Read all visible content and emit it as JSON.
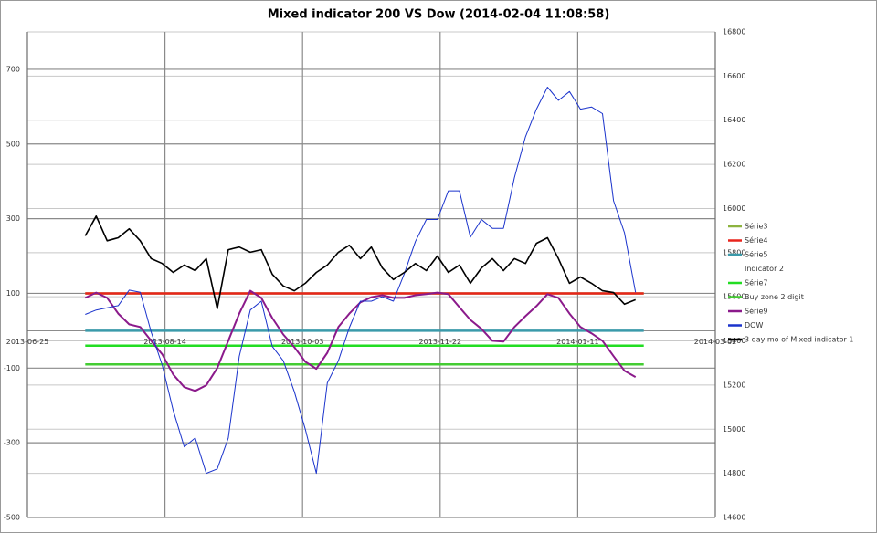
{
  "chart_data": {
    "type": "line",
    "title": "Mixed indicator 200 VS Dow (2014-02-04 11:08:58)",
    "xlim": [
      "2013-06-25",
      "2014-03-02"
    ],
    "xticks": [
      "2013-06-25",
      "2013-08-14",
      "2013-10-03",
      "2013-11-22",
      "2014-01-11",
      "2014-03-02"
    ],
    "ylim": [
      -500,
      800
    ],
    "yticks": [
      -500,
      -300,
      -100,
      100,
      300,
      500,
      700
    ],
    "y2lim": [
      14600,
      16800
    ],
    "y2ticks": [
      14600,
      14800,
      15000,
      15200,
      15400,
      15600,
      15800,
      16000,
      16200,
      16400,
      16600,
      16800
    ],
    "grid": true,
    "legend": "right",
    "series": [
      {
        "name": "Série3",
        "color": "#8db33f",
        "x": [
          "2013-07-16",
          "2014-02-04"
        ],
        "values": [
          100,
          100
        ]
      },
      {
        "name": "Série4",
        "color": "#e8241c",
        "x": [
          "2013-07-16",
          "2014-02-04"
        ],
        "values": [
          100,
          100
        ]
      },
      {
        "name": "Série5",
        "color": "#3a9aaa",
        "x": [
          "2013-07-16",
          "2014-02-04"
        ],
        "values": [
          0,
          0
        ]
      },
      {
        "name": "Indicator 2",
        "color": "#ffffff",
        "x": [],
        "values": []
      },
      {
        "name": "Série7",
        "color": "#22dd22",
        "x": [
          "2013-07-16",
          "2014-02-04"
        ],
        "values": [
          -40,
          -40
        ]
      },
      {
        "name": "Buy zone 2 digit",
        "color": "#44cc33",
        "x": [
          "2013-07-16",
          "2014-02-04"
        ],
        "values": [
          -90,
          -90
        ]
      },
      {
        "name": "Série9",
        "color": "#8b1a8b",
        "x": [
          "2013-07-16",
          "2013-07-20",
          "2013-07-24",
          "2013-07-28",
          "2013-08-01",
          "2013-08-05",
          "2013-08-09",
          "2013-08-13",
          "2013-08-17",
          "2013-08-21",
          "2013-08-25",
          "2013-08-29",
          "2013-09-02",
          "2013-09-06",
          "2013-09-10",
          "2013-09-14",
          "2013-09-18",
          "2013-09-22",
          "2013-09-26",
          "2013-09-30",
          "2013-10-04",
          "2013-10-08",
          "2013-10-12",
          "2013-10-16",
          "2013-10-20",
          "2013-10-24",
          "2013-10-28",
          "2013-11-01",
          "2013-11-05",
          "2013-11-09",
          "2013-11-13",
          "2013-11-17",
          "2013-11-21",
          "2013-11-25",
          "2013-11-29",
          "2013-12-03",
          "2013-12-07",
          "2013-12-11",
          "2013-12-15",
          "2013-12-19",
          "2013-12-23",
          "2013-12-27",
          "2013-12-31",
          "2014-01-04",
          "2014-01-08",
          "2014-01-12",
          "2014-01-16",
          "2014-01-20",
          "2014-01-24",
          "2014-01-28",
          "2014-02-01"
        ],
        "values": [
          88,
          102,
          88,
          46,
          17,
          10,
          -27,
          -63,
          -117,
          -151,
          -161,
          -146,
          -100,
          -27,
          46,
          107,
          88,
          34,
          -10,
          -44,
          -83,
          -102,
          -59,
          10,
          46,
          76,
          90,
          95,
          88,
          88,
          95,
          98,
          102,
          98,
          63,
          29,
          5,
          -27,
          -29,
          10,
          39,
          66,
          98,
          88,
          46,
          10,
          -7,
          -27,
          -68,
          -107,
          -124
        ]
      },
      {
        "name": "DOW",
        "color": "#1a33cc",
        "axis": "y2",
        "x": [
          "2013-07-16",
          "2013-07-20",
          "2013-07-24",
          "2013-07-28",
          "2013-08-01",
          "2013-08-05",
          "2013-08-09",
          "2013-08-13",
          "2013-08-17",
          "2013-08-21",
          "2013-08-25",
          "2013-08-29",
          "2013-09-02",
          "2013-09-06",
          "2013-09-10",
          "2013-09-14",
          "2013-09-18",
          "2013-09-22",
          "2013-09-26",
          "2013-09-30",
          "2013-10-04",
          "2013-10-08",
          "2013-10-12",
          "2013-10-16",
          "2013-10-20",
          "2013-10-24",
          "2013-10-28",
          "2013-11-01",
          "2013-11-05",
          "2013-11-09",
          "2013-11-13",
          "2013-11-17",
          "2013-11-21",
          "2013-11-25",
          "2013-11-29",
          "2013-12-03",
          "2013-12-07",
          "2013-12-11",
          "2013-12-15",
          "2013-12-19",
          "2013-12-23",
          "2013-12-27",
          "2013-12-31",
          "2014-01-04",
          "2014-01-08",
          "2014-01-12",
          "2014-01-16",
          "2014-01-20",
          "2014-01-24",
          "2014-01-28",
          "2014-02-01"
        ],
        "values": [
          15520,
          15540,
          15550,
          15560,
          15630,
          15620,
          15440,
          15290,
          15085,
          14920,
          14960,
          14800,
          14820,
          14960,
          15330,
          15540,
          15580,
          15375,
          15310,
          15170,
          15000,
          14800,
          15210,
          15310,
          15460,
          15580,
          15580,
          15600,
          15580,
          15705,
          15850,
          15950,
          15950,
          16080,
          16080,
          15870,
          15950,
          15910,
          15910,
          16140,
          16325,
          16450,
          16550,
          16490,
          16530,
          16450,
          16460,
          16430,
          16035,
          15890,
          15620
        ]
      },
      {
        "name": "3 day mo of Mixed indicator 1",
        "color": "#000000",
        "x": [
          "2013-07-16",
          "2013-07-20",
          "2013-07-24",
          "2013-07-28",
          "2013-08-01",
          "2013-08-05",
          "2013-08-09",
          "2013-08-13",
          "2013-08-17",
          "2013-08-21",
          "2013-08-25",
          "2013-08-29",
          "2013-09-02",
          "2013-09-06",
          "2013-09-10",
          "2013-09-14",
          "2013-09-18",
          "2013-09-22",
          "2013-09-26",
          "2013-09-30",
          "2013-10-04",
          "2013-10-08",
          "2013-10-12",
          "2013-10-16",
          "2013-10-20",
          "2013-10-24",
          "2013-10-28",
          "2013-11-01",
          "2013-11-05",
          "2013-11-09",
          "2013-11-13",
          "2013-11-17",
          "2013-11-21",
          "2013-11-25",
          "2013-11-29",
          "2013-12-03",
          "2013-12-07",
          "2013-12-11",
          "2013-12-15",
          "2013-12-19",
          "2013-12-23",
          "2013-12-27",
          "2013-12-31",
          "2014-01-04",
          "2014-01-08",
          "2014-01-12",
          "2014-01-16",
          "2014-01-20",
          "2014-01-24",
          "2014-01-28",
          "2014-02-01"
        ],
        "values": [
          254,
          307,
          241,
          249,
          273,
          241,
          193,
          180,
          156,
          176,
          161,
          193,
          59,
          217,
          224,
          210,
          217,
          151,
          120,
          107,
          127,
          156,
          176,
          210,
          229,
          193,
          224,
          168,
          137,
          156,
          180,
          161,
          200,
          156,
          176,
          127,
          168,
          193,
          161,
          193,
          180,
          234,
          249,
          193,
          127,
          144,
          127,
          107,
          102,
          71,
          83
        ]
      }
    ]
  }
}
